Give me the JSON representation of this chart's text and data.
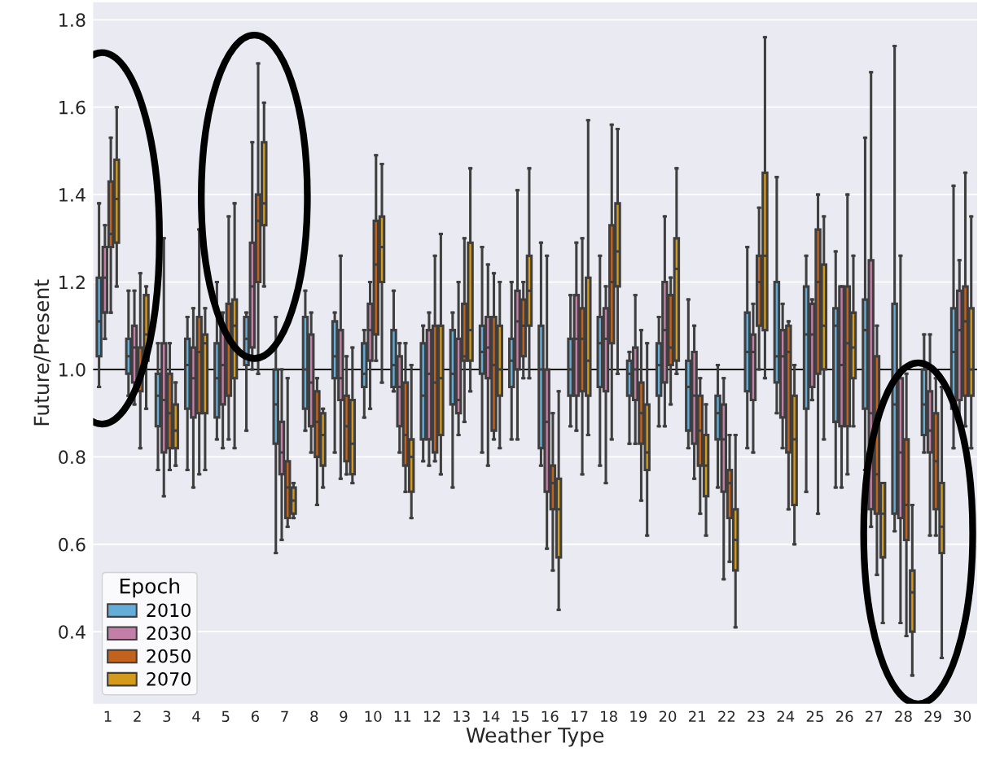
{
  "chart_data": {
    "type": "box",
    "xlabel": "Weather Type",
    "ylabel": "Future/Present",
    "categories": [
      "1",
      "2",
      "3",
      "4",
      "5",
      "6",
      "7",
      "8",
      "9",
      "10",
      "11",
      "12",
      "13",
      "14",
      "15",
      "16",
      "17",
      "18",
      "19",
      "20",
      "21",
      "22",
      "23",
      "24",
      "25",
      "26",
      "27",
      "28",
      "29",
      "30"
    ],
    "ylim": [
      0.235,
      1.84
    ],
    "yticks": [
      0.4,
      0.6,
      0.8,
      {
        "value": 1,
        "label": "1.0"
      },
      1.2,
      1.4,
      1.6,
      1.8
    ],
    "grid": "y",
    "legend": "bottom left",
    "legend_title": "Epoch",
    "ref_lines": [
      {
        "axis": "y",
        "value": 1.0,
        "label": null,
        "color": "#000000"
      }
    ],
    "series": [
      {
        "name": "2010",
        "color": "#64add8",
        "boxes": [
          {
            "low": 0.96,
            "q1": 1.03,
            "median": 1.11,
            "q3": 1.21,
            "high": 1.38
          },
          {
            "low": 0.94,
            "q1": 0.99,
            "median": 1.03,
            "q3": 1.07,
            "high": 1.18
          },
          {
            "low": 0.77,
            "q1": 0.87,
            "median": 0.94,
            "q3": 0.99,
            "high": 1.06
          },
          {
            "low": 0.77,
            "q1": 0.91,
            "median": 1.01,
            "q3": 1.07,
            "high": 1.12
          },
          {
            "low": 0.84,
            "q1": 0.89,
            "median": 0.98,
            "q3": 1.06,
            "high": 1.2
          },
          {
            "low": 0.86,
            "q1": 1.01,
            "median": 1.07,
            "q3": 1.12,
            "high": 1.13
          },
          {
            "low": 0.58,
            "q1": 0.83,
            "median": 0.92,
            "q3": 1.0,
            "high": 1.12
          },
          {
            "low": 0.86,
            "q1": 0.91,
            "median": 1.0,
            "q3": 1.12,
            "high": 1.18
          },
          {
            "low": 0.81,
            "q1": 0.98,
            "median": 1.03,
            "q3": 1.11,
            "high": 1.13
          },
          {
            "low": 0.89,
            "q1": 0.96,
            "median": 0.99,
            "q3": 1.06,
            "high": 1.09
          },
          {
            "low": 0.95,
            "q1": 0.96,
            "median": 1.01,
            "q3": 1.09,
            "high": 1.18
          },
          {
            "low": 0.79,
            "q1": 0.84,
            "median": 0.94,
            "q3": 1.06,
            "high": 1.1
          },
          {
            "low": 0.73,
            "q1": 0.92,
            "median": 0.99,
            "q3": 1.09,
            "high": 1.13
          },
          {
            "low": 0.81,
            "q1": 0.99,
            "median": 1.04,
            "q3": 1.1,
            "high": 1.28
          },
          {
            "low": 0.84,
            "q1": 0.96,
            "median": 1.02,
            "q3": 1.07,
            "high": 1.2
          },
          {
            "low": 0.78,
            "q1": 0.82,
            "median": 1.0,
            "q3": 1.1,
            "high": 1.29
          },
          {
            "low": 0.87,
            "q1": 0.94,
            "median": 1.0,
            "q3": 1.07,
            "high": 1.17
          },
          {
            "low": 0.78,
            "q1": 0.96,
            "median": 1.06,
            "q3": 1.12,
            "high": 1.26
          },
          {
            "low": 0.83,
            "q1": 0.94,
            "median": 0.99,
            "q3": 1.02,
            "high": 1.04
          },
          {
            "low": 0.87,
            "q1": 0.94,
            "median": 1.01,
            "q3": 1.06,
            "high": 1.12
          },
          {
            "low": 0.82,
            "q1": 0.86,
            "median": 0.96,
            "q3": 1.02,
            "high": 1.16
          },
          {
            "low": 0.73,
            "q1": 0.84,
            "median": 0.9,
            "q3": 0.94,
            "high": 1.01
          },
          {
            "low": 0.82,
            "q1": 0.95,
            "median": 1.04,
            "q3": 1.13,
            "high": 1.28
          },
          {
            "low": 0.9,
            "q1": 0.97,
            "median": 1.03,
            "q3": 1.2,
            "high": 1.44
          },
          {
            "low": 0.72,
            "q1": 0.91,
            "median": 1.08,
            "q3": 1.19,
            "high": 1.26
          },
          {
            "low": 0.73,
            "q1": 0.88,
            "median": 1.1,
            "q3": 1.14,
            "high": 1.27
          },
          {
            "low": 0.77,
            "q1": 0.91,
            "median": 1.09,
            "q3": 1.16,
            "high": 1.53
          },
          {
            "low": 0.63,
            "q1": 0.67,
            "median": 0.92,
            "q3": 1.15,
            "high": 1.74
          },
          {
            "low": 0.81,
            "q1": 0.85,
            "median": 0.92,
            "q3": 1.0,
            "high": 1.08
          },
          {
            "low": 0.82,
            "q1": 0.91,
            "median": 1.04,
            "q3": 1.14,
            "high": 1.42
          }
        ]
      },
      {
        "name": "2030",
        "color": "#c47fa8",
        "boxes": [
          {
            "low": 1.07,
            "q1": 1.13,
            "median": 1.21,
            "q3": 1.28,
            "high": 1.33
          },
          {
            "low": 0.92,
            "q1": 0.97,
            "median": 1.05,
            "q3": 1.1,
            "high": 1.18
          },
          {
            "low": 0.71,
            "q1": 0.81,
            "median": 0.93,
            "q3": 1.06,
            "high": 1.3
          },
          {
            "low": 0.73,
            "q1": 0.89,
            "median": 0.98,
            "q3": 1.05,
            "high": 1.14
          },
          {
            "low": 0.82,
            "q1": 0.92,
            "median": 1.01,
            "q3": 1.1,
            "high": 1.13
          },
          {
            "low": 1.0,
            "q1": 1.05,
            "median": 1.19,
            "q3": 1.29,
            "high": 1.52
          },
          {
            "low": 0.61,
            "q1": 0.76,
            "median": 0.81,
            "q3": 0.88,
            "high": 1.0
          },
          {
            "low": 0.81,
            "q1": 0.87,
            "median": 0.97,
            "q3": 1.08,
            "high": 1.13
          },
          {
            "low": 0.75,
            "q1": 0.93,
            "median": 0.98,
            "q3": 1.09,
            "high": 1.26
          },
          {
            "low": 0.91,
            "q1": 1.02,
            "median": 1.09,
            "q3": 1.15,
            "high": 1.2
          },
          {
            "low": 0.81,
            "q1": 0.87,
            "median": 0.96,
            "q3": 1.03,
            "high": 1.06
          },
          {
            "low": 0.78,
            "q1": 0.84,
            "median": 0.99,
            "q3": 1.09,
            "high": 1.13
          },
          {
            "low": 0.85,
            "q1": 0.9,
            "median": 0.93,
            "q3": 1.07,
            "high": 1.2
          },
          {
            "low": 0.78,
            "q1": 0.98,
            "median": 1.05,
            "q3": 1.12,
            "high": 1.24
          },
          {
            "low": 0.84,
            "q1": 1.0,
            "median": 1.11,
            "q3": 1.18,
            "high": 1.41
          },
          {
            "low": 0.59,
            "q1": 0.72,
            "median": 0.88,
            "q3": 1.0,
            "high": 1.26
          },
          {
            "low": 0.86,
            "q1": 0.94,
            "median": 1.07,
            "q3": 1.17,
            "high": 1.29
          },
          {
            "low": 0.74,
            "q1": 0.95,
            "median": 1.07,
            "q3": 1.14,
            "high": 1.19
          },
          {
            "low": 0.83,
            "q1": 0.93,
            "median": 1.0,
            "q3": 1.05,
            "high": 1.17
          },
          {
            "low": 0.87,
            "q1": 0.97,
            "median": 1.09,
            "q3": 1.2,
            "high": 1.35
          },
          {
            "low": 0.75,
            "q1": 0.83,
            "median": 0.94,
            "q3": 1.04,
            "high": 1.1
          },
          {
            "low": 0.52,
            "q1": 0.72,
            "median": 0.84,
            "q3": 0.92,
            "high": 0.98
          },
          {
            "low": 0.81,
            "q1": 0.93,
            "median": 1.04,
            "q3": 1.08,
            "high": 1.15
          },
          {
            "low": 0.82,
            "q1": 0.89,
            "median": 1.03,
            "q3": 1.09,
            "high": 1.15
          },
          {
            "low": 0.93,
            "q1": 0.96,
            "median": 1.08,
            "q3": 1.15,
            "high": 1.16
          },
          {
            "low": 0.73,
            "q1": 0.87,
            "median": 1.01,
            "q3": 1.19,
            "high": 1.19
          },
          {
            "low": 0.64,
            "q1": 0.68,
            "median": 0.9,
            "q3": 1.25,
            "high": 1.68
          },
          {
            "low": 0.42,
            "q1": 0.66,
            "median": 0.81,
            "q3": 0.98,
            "high": 1.26
          },
          {
            "low": 0.62,
            "q1": 0.81,
            "median": 0.86,
            "q3": 0.95,
            "high": 1.08
          },
          {
            "low": 0.88,
            "q1": 0.93,
            "median": 1.09,
            "q3": 1.18,
            "high": 1.25
          }
        ]
      },
      {
        "name": "2050",
        "color": "#c3621c",
        "boxes": [
          {
            "low": 1.13,
            "q1": 1.28,
            "median": 1.31,
            "q3": 1.43,
            "high": 1.53
          },
          {
            "low": 0.82,
            "q1": 0.95,
            "median": 1.0,
            "q3": 1.05,
            "high": 1.22
          },
          {
            "low": 0.77,
            "q1": 0.82,
            "median": 0.9,
            "q3": 0.99,
            "high": 1.06
          },
          {
            "low": 0.76,
            "q1": 0.9,
            "median": 1.04,
            "q3": 1.12,
            "high": 1.32
          },
          {
            "low": 0.84,
            "q1": 0.94,
            "median": 1.06,
            "q3": 1.15,
            "high": 1.35
          },
          {
            "low": 0.99,
            "q1": 1.2,
            "median": 1.34,
            "q3": 1.4,
            "high": 1.7
          },
          {
            "low": 0.64,
            "q1": 0.66,
            "median": 0.73,
            "q3": 0.79,
            "high": 0.98
          },
          {
            "low": 0.69,
            "q1": 0.8,
            "median": 0.88,
            "q3": 0.95,
            "high": 0.98
          },
          {
            "low": 0.76,
            "q1": 0.79,
            "median": 0.87,
            "q3": 0.94,
            "high": 1.03
          },
          {
            "low": 1.02,
            "q1": 1.08,
            "median": 1.24,
            "q3": 1.34,
            "high": 1.49
          },
          {
            "low": 0.72,
            "q1": 0.78,
            "median": 0.85,
            "q3": 0.97,
            "high": 1.06
          },
          {
            "low": 0.79,
            "q1": 0.81,
            "median": 0.97,
            "q3": 1.1,
            "high": 1.26
          },
          {
            "low": 0.88,
            "q1": 1.02,
            "median": 1.03,
            "q3": 1.15,
            "high": 1.3
          },
          {
            "low": 0.84,
            "q1": 0.86,
            "median": 1.01,
            "q3": 1.12,
            "high": 1.22
          },
          {
            "low": 0.98,
            "q1": 1.03,
            "median": 1.1,
            "q3": 1.16,
            "high": 1.2
          },
          {
            "low": 0.54,
            "q1": 0.68,
            "median": 0.74,
            "q3": 0.78,
            "high": 0.9
          },
          {
            "low": 0.76,
            "q1": 0.95,
            "median": 1.07,
            "q3": 1.14,
            "high": 1.3
          },
          {
            "low": 0.84,
            "q1": 1.06,
            "median": 1.2,
            "q3": 1.33,
            "high": 1.56
          },
          {
            "low": 0.7,
            "q1": 0.83,
            "median": 0.9,
            "q3": 0.97,
            "high": 1.09
          },
          {
            "low": 0.92,
            "q1": 1.01,
            "median": 1.05,
            "q3": 1.17,
            "high": 1.21
          },
          {
            "low": 0.67,
            "q1": 0.78,
            "median": 0.86,
            "q3": 0.94,
            "high": 0.98
          },
          {
            "low": 0.56,
            "q1": 0.66,
            "median": 0.74,
            "q3": 0.77,
            "high": 0.85
          },
          {
            "low": 1.0,
            "q1": 1.1,
            "median": 1.2,
            "q3": 1.26,
            "high": 1.37
          },
          {
            "low": 0.68,
            "q1": 0.81,
            "median": 1.04,
            "q3": 1.1,
            "high": 1.11
          },
          {
            "low": 0.67,
            "q1": 0.99,
            "median": 1.2,
            "q3": 1.32,
            "high": 1.4
          },
          {
            "low": 0.76,
            "q1": 0.87,
            "median": 1.06,
            "q3": 1.19,
            "high": 1.4
          },
          {
            "low": 0.53,
            "q1": 0.67,
            "median": 0.76,
            "q3": 1.03,
            "high": 1.1
          },
          {
            "low": 0.39,
            "q1": 0.61,
            "median": 0.69,
            "q3": 0.84,
            "high": 0.99
          },
          {
            "low": 0.62,
            "q1": 0.68,
            "median": 0.79,
            "q3": 0.9,
            "high": 0.98
          },
          {
            "low": 0.87,
            "q1": 0.94,
            "median": 1.11,
            "q3": 1.19,
            "high": 1.45
          }
        ]
      },
      {
        "name": "2070",
        "color": "#d39a1c",
        "boxes": [
          {
            "low": 1.19,
            "q1": 1.29,
            "median": 1.39,
            "q3": 1.48,
            "high": 1.6
          },
          {
            "low": 0.91,
            "q1": 1.02,
            "median": 1.08,
            "q3": 1.17,
            "high": 1.19
          },
          {
            "low": 0.78,
            "q1": 0.82,
            "median": 0.86,
            "q3": 0.92,
            "high": 0.97
          },
          {
            "low": 0.77,
            "q1": 0.9,
            "median": 1.06,
            "q3": 1.08,
            "high": 1.14
          },
          {
            "low": 0.82,
            "q1": 0.98,
            "median": 1.1,
            "q3": 1.16,
            "high": 1.38
          },
          {
            "low": 1.19,
            "q1": 1.33,
            "median": 1.38,
            "q3": 1.52,
            "high": 1.61
          },
          {
            "low": 0.66,
            "q1": 0.67,
            "median": 0.7,
            "q3": 0.73,
            "high": 0.74
          },
          {
            "low": 0.73,
            "q1": 0.78,
            "median": 0.85,
            "q3": 0.9,
            "high": 0.91
          },
          {
            "low": 0.74,
            "q1": 0.76,
            "median": 0.83,
            "q3": 0.93,
            "high": 1.05
          },
          {
            "low": 0.97,
            "q1": 1.2,
            "median": 1.28,
            "q3": 1.35,
            "high": 1.47
          },
          {
            "low": 0.66,
            "q1": 0.72,
            "median": 0.8,
            "q3": 0.84,
            "high": 1.01
          },
          {
            "low": 0.76,
            "q1": 0.85,
            "median": 0.98,
            "q3": 1.1,
            "high": 1.31
          },
          {
            "low": 0.95,
            "q1": 1.02,
            "median": 1.09,
            "q3": 1.29,
            "high": 1.46
          },
          {
            "low": 0.82,
            "q1": 0.94,
            "median": 1.0,
            "q3": 1.1,
            "high": 1.2
          },
          {
            "low": 0.98,
            "q1": 1.1,
            "median": 1.18,
            "q3": 1.26,
            "high": 1.46
          },
          {
            "low": 0.45,
            "q1": 0.57,
            "median": 0.68,
            "q3": 0.75,
            "high": 0.95
          },
          {
            "low": 0.85,
            "q1": 0.94,
            "median": 1.02,
            "q3": 1.21,
            "high": 1.57
          },
          {
            "low": 0.99,
            "q1": 1.19,
            "median": 1.27,
            "q3": 1.38,
            "high": 1.55
          },
          {
            "low": 0.62,
            "q1": 0.77,
            "median": 0.81,
            "q3": 0.92,
            "high": 1.06
          },
          {
            "low": 0.99,
            "q1": 1.02,
            "median": 1.23,
            "q3": 1.3,
            "high": 1.46
          },
          {
            "low": 0.62,
            "q1": 0.71,
            "median": 0.78,
            "q3": 0.85,
            "high": 0.92
          },
          {
            "low": 0.41,
            "q1": 0.54,
            "median": 0.61,
            "q3": 0.68,
            "high": 0.85
          },
          {
            "low": 0.98,
            "q1": 1.09,
            "median": 1.26,
            "q3": 1.45,
            "high": 1.76
          },
          {
            "low": 0.6,
            "q1": 0.69,
            "median": 0.84,
            "q3": 0.94,
            "high": 1.01
          },
          {
            "low": 0.84,
            "q1": 1.0,
            "median": 1.1,
            "q3": 1.24,
            "high": 1.35
          },
          {
            "low": 0.87,
            "q1": 0.98,
            "median": 1.05,
            "q3": 1.13,
            "high": 1.26
          },
          {
            "low": 0.42,
            "q1": 0.57,
            "median": 0.67,
            "q3": 0.74,
            "high": 0.74
          },
          {
            "low": 0.3,
            "q1": 0.4,
            "median": 0.49,
            "q3": 0.54,
            "high": 0.69
          },
          {
            "low": 0.34,
            "q1": 0.58,
            "median": 0.64,
            "q3": 0.74,
            "high": 0.96
          },
          {
            "low": 0.82,
            "q1": 0.94,
            "median": 1.0,
            "q3": 1.14,
            "high": 1.35
          }
        ]
      }
    ]
  }
}
